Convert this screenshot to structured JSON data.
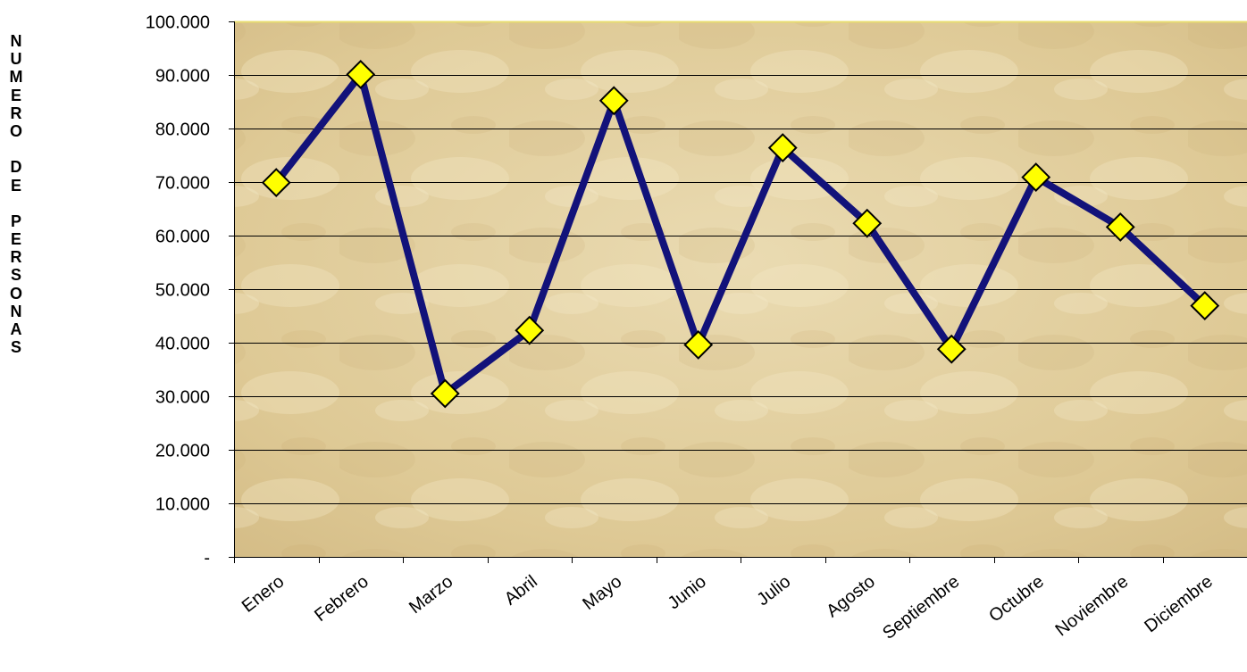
{
  "chart_data": {
    "type": "line",
    "title": "",
    "xlabel": "",
    "ylabel": "NUMERO DE PERSONAS",
    "categories": [
      "Enero",
      "Febrero",
      "Marzo",
      "Abril",
      "Mayo",
      "Junio",
      "Julio",
      "Agosto",
      "Septiembre",
      "Octubre",
      "Noviembre",
      "Diciembre"
    ],
    "series": [
      {
        "values": [
          69900,
          90100,
          30500,
          42300,
          85200,
          39600,
          76400,
          62300,
          38800,
          70900,
          61600,
          46900
        ],
        "color": "#12127a"
      }
    ],
    "ylim": [
      0,
      100000
    ],
    "yticks": [
      0,
      10000,
      20000,
      30000,
      40000,
      50000,
      60000,
      70000,
      80000,
      90000,
      100000
    ],
    "ytick_labels": [
      "-",
      "10.000",
      "20.000",
      "30.000",
      "40.000",
      "50.000",
      "60.000",
      "70.000",
      "80.000",
      "90.000",
      "100.000"
    ],
    "grid": true,
    "legend": "none",
    "marker": "diamond",
    "marker_color": "#ffff00",
    "plot_background": "#e4d2a6"
  }
}
